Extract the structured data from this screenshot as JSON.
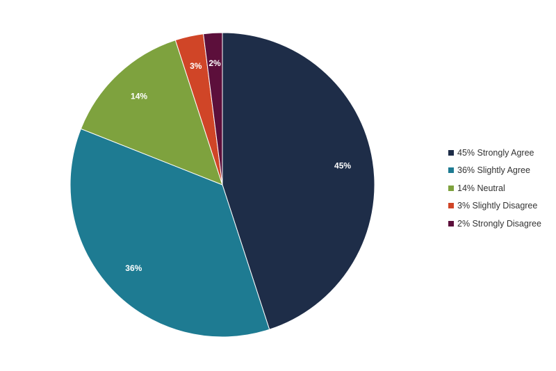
{
  "chart_data": {
    "type": "pie",
    "title": "",
    "slices": [
      {
        "label": "Strongly Agree",
        "value": 45,
        "display": "45%",
        "legend": "45% Strongly Agree",
        "color": "#1e2d48"
      },
      {
        "label": "Slightly Agree",
        "value": 36,
        "display": "36%",
        "legend": "36% Slightly Agree",
        "color": "#1e7b92"
      },
      {
        "label": "Neutral",
        "value": 14,
        "display": "14%",
        "legend": "14% Neutral",
        "color": "#7ea23e"
      },
      {
        "label": "Slightly Disagree",
        "value": 3,
        "display": "3%",
        "legend": "3% Slightly Disagree",
        "color": "#d04527"
      },
      {
        "label": "Strongly Disagree",
        "value": 2,
        "display": "2%",
        "legend": "2% Strongly Disagree",
        "color": "#5c0f3b"
      }
    ],
    "legend_position": "right",
    "start_angle": "top, clockwise"
  }
}
